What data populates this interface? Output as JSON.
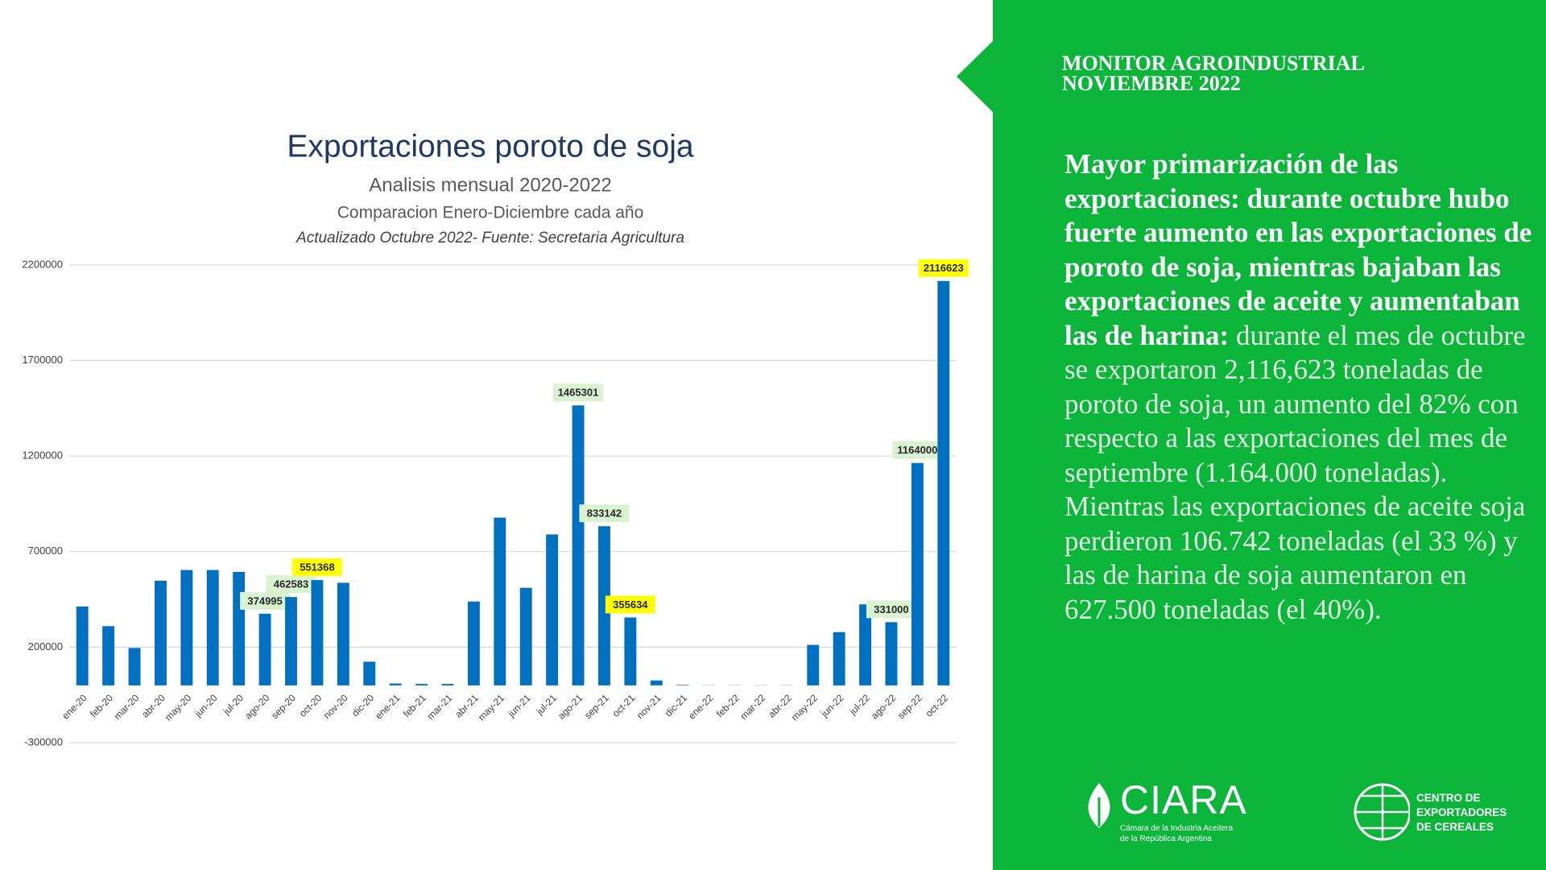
{
  "chart_data": {
    "type": "bar",
    "title": "Exportaciones poroto de soja",
    "subtitle": "Analisis mensual 2020-2022",
    "subtitle2": "Comparacion Enero-Diciembre cada año",
    "source": "Actualizado  Octubre 2022- Fuente: Secretaria Agricultura",
    "categories": [
      "ene-20",
      "feb-20",
      "mar-20",
      "abr-20",
      "may-20",
      "jun-20",
      "jul-20",
      "ago-20",
      "sep-20",
      "oct-20",
      "nov-20",
      "dic-20",
      "ene-21",
      "feb-21",
      "mar-21",
      "abr-21",
      "may-21",
      "jun-21",
      "jul-21",
      "ago-21",
      "sep-21",
      "oct-21",
      "nov-21",
      "dic-21",
      "ene-22",
      "feb-22",
      "mar-22",
      "abr-22",
      "may-22",
      "jun-22",
      "jul-22",
      "ago-22",
      "sep-22",
      "oct-22"
    ],
    "values": [
      413000,
      310000,
      196000,
      548000,
      604000,
      604000,
      594000,
      374995,
      462583,
      551368,
      537000,
      124000,
      10000,
      8000,
      8000,
      439000,
      878000,
      511000,
      790000,
      1465301,
      833142,
      355634,
      26000,
      3000,
      1000,
      1000,
      1000,
      1000,
      212000,
      279000,
      424000,
      331000,
      1164000,
      2116623
    ],
    "value_labels": [
      null,
      null,
      null,
      null,
      null,
      null,
      null,
      "374995",
      "462583",
      "551368",
      null,
      null,
      null,
      null,
      null,
      null,
      null,
      null,
      null,
      "1465301",
      "833142",
      "355634",
      null,
      null,
      null,
      null,
      null,
      null,
      null,
      null,
      null,
      "331000",
      "1164000",
      "2116623"
    ],
    "label_colors": [
      null,
      null,
      null,
      null,
      null,
      null,
      null,
      "#d9f2d0",
      "#d9f2d0",
      "#ffff00",
      null,
      null,
      null,
      null,
      null,
      null,
      null,
      null,
      null,
      "#d9f2d0",
      "#d9f2d0",
      "#ffff00",
      null,
      null,
      null,
      null,
      null,
      null,
      null,
      null,
      null,
      "#d9f2d0",
      "#d9f2d0",
      "#ffff00"
    ],
    "color": "#0070c0",
    "ylim": [
      -300000,
      2200000
    ],
    "yticks": [
      -300000,
      200000,
      700000,
      1200000,
      1700000,
      2200000
    ],
    "grid": true
  },
  "panel": {
    "header": [
      "MONITOR AGROINDUSTRIAL",
      "NOVIEMBRE 2022"
    ],
    "bold": "Mayor primarización de las exportaciones: durante octubre hubo fuerte aumento en las exportaciones de poroto de soja, mientras bajaban las exportaciones de aceite y aumentaban las de harina:",
    "text": "durante el mes de octubre se exportaron 2,116,623 toneladas de poroto de soja, un aumento del 82% con respecto a las exportaciones del mes de septiembre (1.164.000 toneladas). Mientras las exportaciones de aceite soja perdieron 106.742 toneladas (el 33 %) y las de harina de soja aumentaron en 627.500 toneladas (el 40%)."
  },
  "logos": {
    "ciara": "CIARA",
    "ciara_sub": [
      "Cámara de la Industria Aceitera",
      "de la República Argentina"
    ],
    "cec": [
      "CENTRO DE",
      "EXPORTADORES",
      "DE CEREALES"
    ]
  }
}
